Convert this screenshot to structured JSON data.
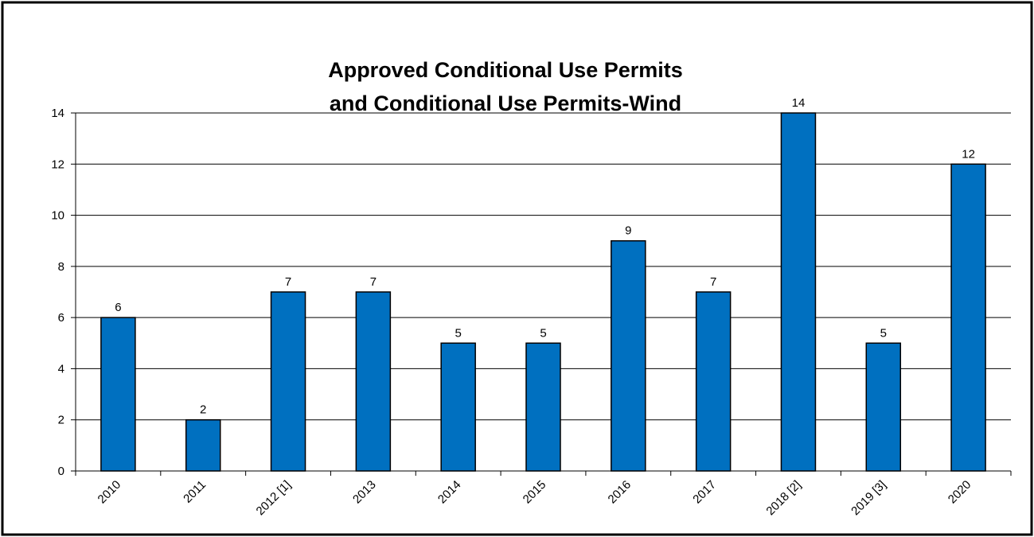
{
  "chart_data": {
    "type": "bar",
    "title": [
      "Approved Conditional Use Permits",
      "and Conditional Use Permits-Wind"
    ],
    "categories": [
      "2010",
      "2011",
      "2012 [1]",
      "2013",
      "2014",
      "2015",
      "2016",
      "2017",
      "2018 [2]",
      "2019 [3]",
      "2020"
    ],
    "values": [
      6,
      2,
      7,
      7,
      5,
      5,
      9,
      7,
      14,
      5,
      12
    ],
    "color": "#0070c0",
    "ylim": [
      0,
      14
    ],
    "yticks": [
      0,
      2,
      4,
      6,
      8,
      10,
      12,
      14
    ],
    "grid": true
  }
}
